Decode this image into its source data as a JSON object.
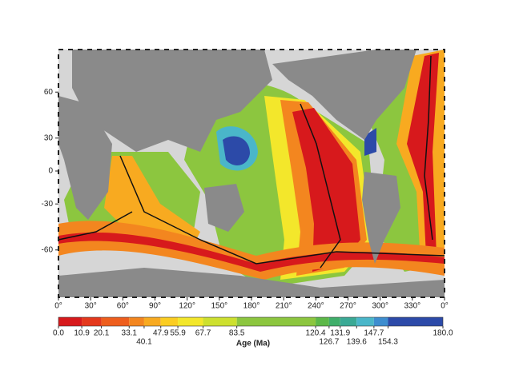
{
  "map": {
    "lon_ticks": [
      {
        "value": 0,
        "label": "0°"
      },
      {
        "value": 30,
        "label": "30°"
      },
      {
        "value": 60,
        "label": "60°"
      },
      {
        "value": 90,
        "label": "90°"
      },
      {
        "value": 120,
        "label": "120°"
      },
      {
        "value": 150,
        "label": "150°"
      },
      {
        "value": 180,
        "label": "180°"
      },
      {
        "value": 210,
        "label": "210°"
      },
      {
        "value": 240,
        "label": "240°"
      },
      {
        "value": 270,
        "label": "270°"
      },
      {
        "value": 300,
        "label": "300°"
      },
      {
        "value": 330,
        "label": "330°"
      },
      {
        "value": 360,
        "label": "0°"
      }
    ],
    "lat_ticks": [
      60,
      30,
      0,
      -30,
      -60
    ]
  },
  "colorbar": {
    "title": "Age (Ma)",
    "range": [
      0,
      180
    ],
    "ticks": [
      {
        "value": 0,
        "label": "0.0"
      },
      10.9,
      20.1,
      33.1,
      40.1,
      47.9,
      55.9,
      67.7,
      83.5,
      120.4,
      126.7,
      131.9,
      139.6,
      147.7,
      154.3,
      {
        "value": 180,
        "label": "180.0"
      }
    ],
    "colors": [
      "#d7191c",
      "#e4381c",
      "#ee5e1d",
      "#f3861f",
      "#f8aa20",
      "#fbcd22",
      "#f3e72b",
      "#cde02f",
      "#8cc63f",
      "#5cb848",
      "#3fae6a",
      "#3aa995",
      "#4ab6c9",
      "#3d8dcf",
      "#2c4aa8"
    ]
  }
}
